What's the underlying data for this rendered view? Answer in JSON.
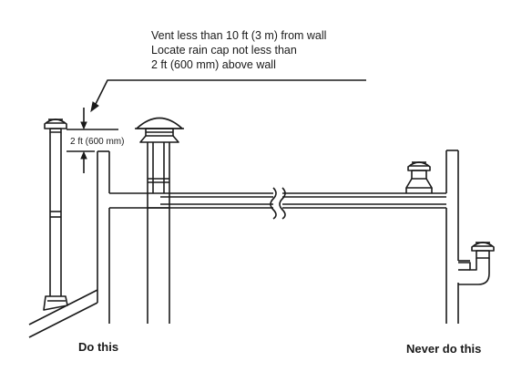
{
  "note": {
    "line1": "Vent less than 10 ft (3 m) from wall",
    "line2": "Locate rain cap not less than",
    "line3": "2 ft (600 mm) above wall"
  },
  "dimension_label": "2 ft (600 mm)",
  "captions": {
    "left": "Do this",
    "right": "Never do this"
  }
}
